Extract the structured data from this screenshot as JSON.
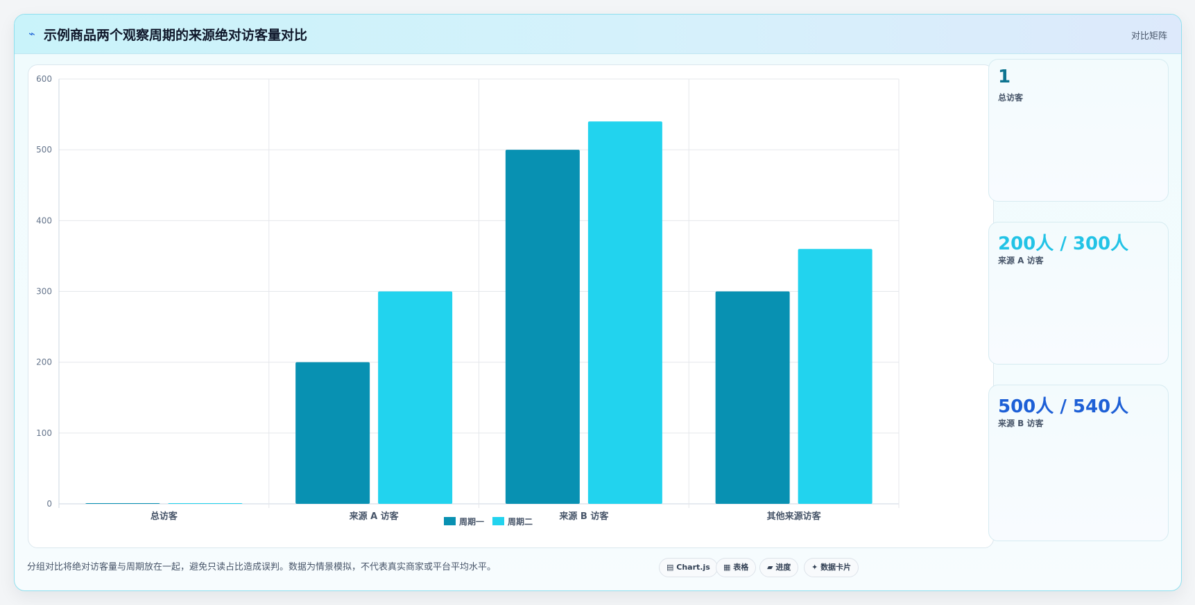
{
  "header": {
    "icon": "lightning-bolt-icon",
    "title": "示例商品两个观察周期的来源绝对访客量对比",
    "tag": "对比矩阵"
  },
  "chart_data": {
    "type": "bar",
    "categories": [
      "总访客",
      "来源 A 访客",
      "来源 B 访客",
      "其他来源访客"
    ],
    "series": [
      {
        "name": "周期一",
        "color": "#0891b2",
        "values": [
          1,
          200,
          500,
          300
        ]
      },
      {
        "name": "周期二",
        "color": "#22d3ee",
        "values": [
          1,
          300,
          540,
          360
        ]
      }
    ],
    "ylim": [
      0,
      600
    ],
    "yticks": [
      0,
      100,
      200,
      300,
      400,
      500,
      600
    ],
    "grid": true,
    "legend": "bottom-center"
  },
  "side_cards": [
    {
      "value": "1",
      "label": "总访客",
      "color": "#0e7490"
    },
    {
      "value": "200人 / 300人",
      "label": "来源 A 访客",
      "color": "#22c3e6"
    },
    {
      "value": "500人 / 540人",
      "label": "来源 B 访客",
      "color": "#1d5fd6"
    }
  ],
  "footer": {
    "note": "分组对比将绝对访客量与周期放在一起，避免只读占比造成误判。数据为情景模拟，不代表真实商家或平台平均水平。",
    "pills": [
      {
        "icon": "▤",
        "label": "Chart.js"
      },
      {
        "icon": "▦",
        "label": "表格"
      },
      {
        "icon": "▰",
        "label": "进度"
      },
      {
        "icon": "✦",
        "label": "数据卡片"
      }
    ]
  }
}
